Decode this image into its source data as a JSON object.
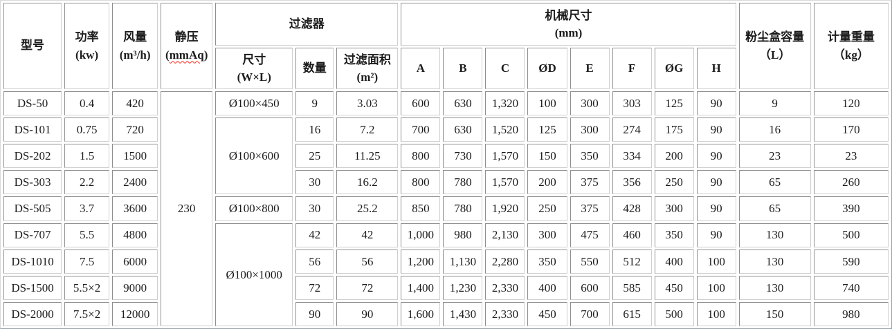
{
  "table": {
    "headers": {
      "model": "型号",
      "power_l1": "功率",
      "power_l2": "(kw)",
      "airflow_l1": "风量",
      "airflow_l2": "(m³/h)",
      "pressure_l1": "静压",
      "pressure_open": "(",
      "pressure_unit": "mmAq",
      "pressure_close": ")",
      "filter_group": "过滤器",
      "size_l1": "尺寸",
      "size_l2": "(W×L)",
      "qty": "数量",
      "area_l1": "过滤面积",
      "area_l2": "(m²)",
      "mech_group_l1": "机械尺寸",
      "mech_group_l2": "(mm)",
      "dims": [
        "A",
        "B",
        "C",
        "ØD",
        "E",
        "F",
        "ØG",
        "H"
      ],
      "dust_l1": "粉尘盒容量",
      "dust_l2": "（L）",
      "weight_l1": "计量重量",
      "weight_l2": "（kg）"
    },
    "static_pressure": "230",
    "rows": [
      {
        "model": "DS-50",
        "power": "0.4",
        "airflow": "420",
        "size": "Ø100×450",
        "size_rowspan": 1,
        "qty": "9",
        "area": "3.03",
        "dims": [
          "600",
          "630",
          "1,320",
          "100",
          "300",
          "303",
          "125",
          "90"
        ],
        "dust": "9",
        "weight": "120"
      },
      {
        "model": "DS-101",
        "power": "0.75",
        "airflow": "720",
        "size": "Ø100×600",
        "size_rowspan": 3,
        "qty": "16",
        "area": "7.2",
        "dims": [
          "700",
          "630",
          "1,520",
          "125",
          "300",
          "274",
          "175",
          "90"
        ],
        "dust": "16",
        "weight": "170"
      },
      {
        "model": "DS-202",
        "power": "1.5",
        "airflow": "1500",
        "qty": "25",
        "area": "11.25",
        "dims": [
          "800",
          "730",
          "1,570",
          "150",
          "350",
          "334",
          "200",
          "90"
        ],
        "dust": "23",
        "weight": "23"
      },
      {
        "model": "DS-303",
        "power": "2.2",
        "airflow": "2400",
        "qty": "30",
        "area": "16.2",
        "dims": [
          "800",
          "780",
          "1,570",
          "200",
          "375",
          "356",
          "250",
          "90"
        ],
        "dust": "65",
        "weight": "260"
      },
      {
        "model": "DS-505",
        "power": "3.7",
        "airflow": "3600",
        "size": "Ø100×800",
        "size_rowspan": 1,
        "qty": "30",
        "area": "25.2",
        "dims": [
          "850",
          "780",
          "1,920",
          "250",
          "375",
          "428",
          "300",
          "90"
        ],
        "dust": "65",
        "weight": "390"
      },
      {
        "model": "DS-707",
        "power": "5.5",
        "airflow": "4800",
        "size": "Ø100×1000",
        "size_rowspan": 4,
        "qty": "42",
        "area": "42",
        "dims": [
          "1,000",
          "980",
          "2,130",
          "300",
          "475",
          "460",
          "350",
          "90"
        ],
        "dust": "130",
        "weight": "500"
      },
      {
        "model": "DS-1010",
        "power": "7.5",
        "airflow": "6000",
        "qty": "56",
        "area": "56",
        "dims": [
          "1,200",
          "1,130",
          "2,280",
          "350",
          "550",
          "512",
          "400",
          "100"
        ],
        "dust": "130",
        "weight": "590"
      },
      {
        "model": "DS-1500",
        "power": "5.5×2",
        "airflow": "9000",
        "qty": "72",
        "area": "72",
        "dims": [
          "1,400",
          "1,230",
          "2,330",
          "400",
          "600",
          "585",
          "450",
          "100"
        ],
        "dust": "130",
        "weight": "740"
      },
      {
        "model": "DS-2000",
        "power": "7.5×2",
        "airflow": "12000",
        "qty": "90",
        "area": "90",
        "dims": [
          "1,600",
          "1,430",
          "2,330",
          "450",
          "700",
          "615",
          "500",
          "100"
        ],
        "dust": "150",
        "weight": "980"
      }
    ]
  }
}
